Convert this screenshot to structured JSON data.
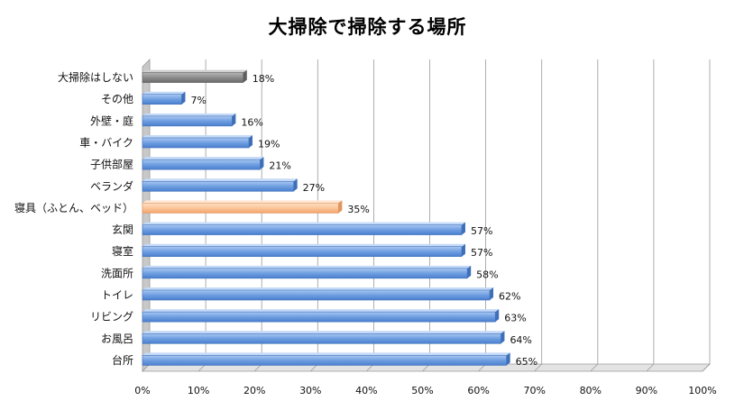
{
  "title": "大掃除で掃除する場所",
  "chart_data": {
    "type": "bar",
    "orientation": "horizontal",
    "title": "大掃除で掃除する場所",
    "categories": [
      "大掃除はしない",
      "その他",
      "外壁・庭",
      "車・バイク",
      "子供部屋",
      "ベランダ",
      "寝具（ふとん、ベッド）",
      "玄関",
      "寝室",
      "洗面所",
      "トイレ",
      "リビング",
      "お風呂",
      "台所"
    ],
    "values": [
      18,
      7,
      16,
      19,
      21,
      27,
      35,
      57,
      57,
      58,
      62,
      63,
      64,
      65
    ],
    "value_labels": [
      "18%",
      "7%",
      "16%",
      "19%",
      "21%",
      "27%",
      "35%",
      "57%",
      "57%",
      "58%",
      "62%",
      "63%",
      "64%",
      "65%"
    ],
    "bar_colors": [
      "#8c8c8c",
      "#6f9ee0",
      "#6f9ee0",
      "#6f9ee0",
      "#6f9ee0",
      "#6f9ee0",
      "#fbc59a",
      "#6f9ee0",
      "#6f9ee0",
      "#6f9ee0",
      "#6f9ee0",
      "#6f9ee0",
      "#6f9ee0",
      "#6f9ee0"
    ],
    "xlim": [
      0,
      100
    ],
    "x_ticks": [
      "0%",
      "10%",
      "20%",
      "30%",
      "40%",
      "50%",
      "60%",
      "70%",
      "80%",
      "90%",
      "100%"
    ],
    "grid": true,
    "legend": "none"
  }
}
